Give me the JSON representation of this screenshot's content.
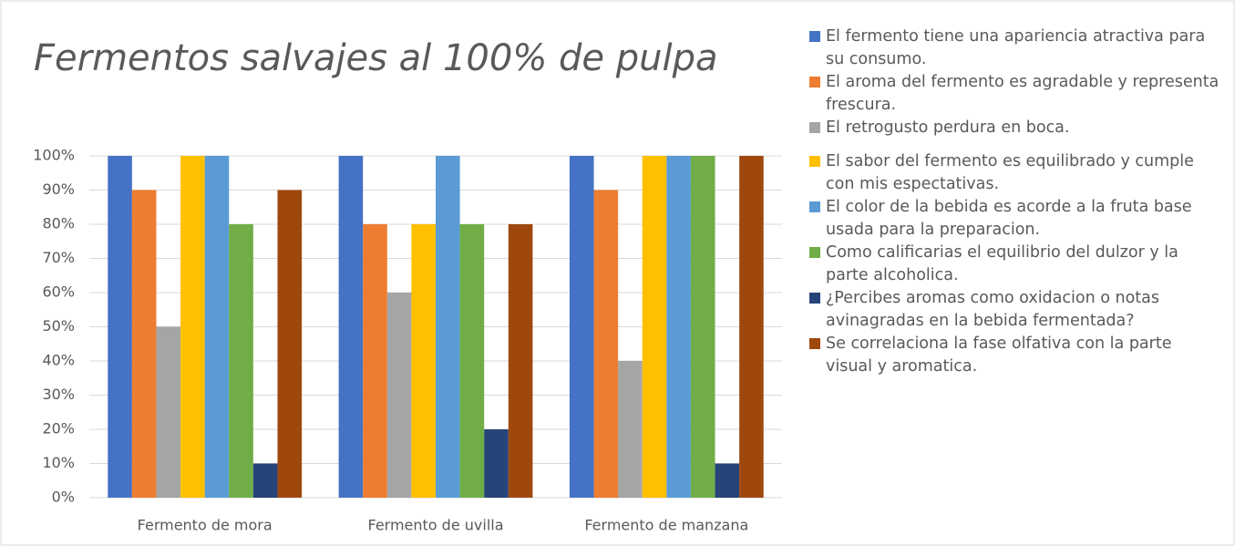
{
  "chart_data": {
    "type": "bar",
    "title": "Fermentos salvajes al 100% de pulpa",
    "categories": [
      "Fermento de mora",
      "Fermento de uvilla",
      "Fermento de manzana"
    ],
    "series": [
      {
        "name": "El fermento tiene una apariencia atractiva para su consumo.",
        "color": "#4472c4",
        "values": [
          100,
          100,
          100
        ]
      },
      {
        "name": "El aroma del fermento es agradable y representa frescura.",
        "color": "#ed7d31",
        "values": [
          90,
          80,
          90
        ]
      },
      {
        "name": "El retrogusto perdura en boca.",
        "color": "#a5a5a5",
        "values": [
          50,
          60,
          40
        ]
      },
      {
        "name": "El sabor del fermento es equilibrado y cumple con mis espectativas.",
        "color": "#ffc000",
        "values": [
          100,
          80,
          100
        ]
      },
      {
        "name": "El color de la bebida es acorde a la fruta base usada para la preparacion.",
        "color": "#5b9bd5",
        "values": [
          100,
          100,
          100
        ]
      },
      {
        "name": "Como calificarias el equilibrio del dulzor y la parte alcoholica.",
        "color": "#70ad47",
        "values": [
          80,
          80,
          100
        ]
      },
      {
        "name": "¿Percibes aromas como oxidacion o notas avinagradas en la bebida fermentada?",
        "color": "#264478",
        "values": [
          10,
          20,
          10
        ]
      },
      {
        "name": "Se correlaciona la fase olfativa con la parte visual y aromatica.",
        "color": "#9e480e",
        "values": [
          90,
          80,
          100
        ]
      }
    ],
    "ylim": [
      0,
      100
    ],
    "yticks": [
      {
        "value": 0,
        "label": "0%"
      },
      {
        "value": 10,
        "label": "10%"
      },
      {
        "value": 20,
        "label": "20%"
      },
      {
        "value": 30,
        "label": "30%"
      },
      {
        "value": 40,
        "label": "40%"
      },
      {
        "value": 50,
        "label": "50%"
      },
      {
        "value": 60,
        "label": "60%"
      },
      {
        "value": 70,
        "label": "70%"
      },
      {
        "value": 80,
        "label": "80%"
      },
      {
        "value": 90,
        "label": "90%"
      },
      {
        "value": 100,
        "label": "100%"
      }
    ],
    "grid": true,
    "legend": "right"
  }
}
